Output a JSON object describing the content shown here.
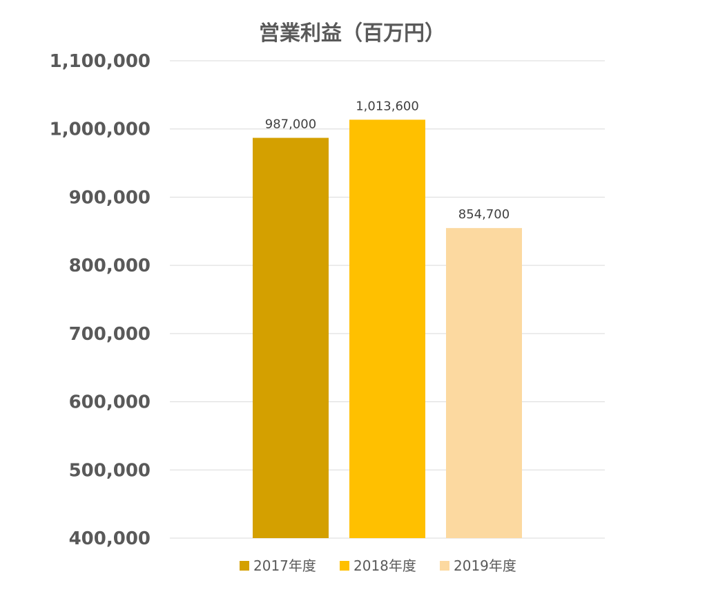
{
  "chart_data": {
    "type": "bar",
    "title": "営業利益（百万円）",
    "xlabel": "",
    "ylabel": "",
    "ylim": [
      400000,
      1100000
    ],
    "yticks": [
      1100000,
      1000000,
      900000,
      800000,
      700000,
      600000,
      500000,
      400000
    ],
    "ytick_labels": [
      "1,100,000",
      "1,000,000",
      "900,000",
      "800,000",
      "700,000",
      "600,000",
      "500,000",
      "400,000"
    ],
    "grid": true,
    "legend_position": "bottom",
    "series": [
      {
        "name": "2017年度",
        "value": 987000,
        "label": "987,000",
        "color": "#D4A000"
      },
      {
        "name": "2018年度",
        "value": 1013600,
        "label": "1,013,600",
        "color": "#FFC000"
      },
      {
        "name": "2019年度",
        "value": 854700,
        "label": "854,700",
        "color": "#FCD9A0"
      }
    ]
  }
}
